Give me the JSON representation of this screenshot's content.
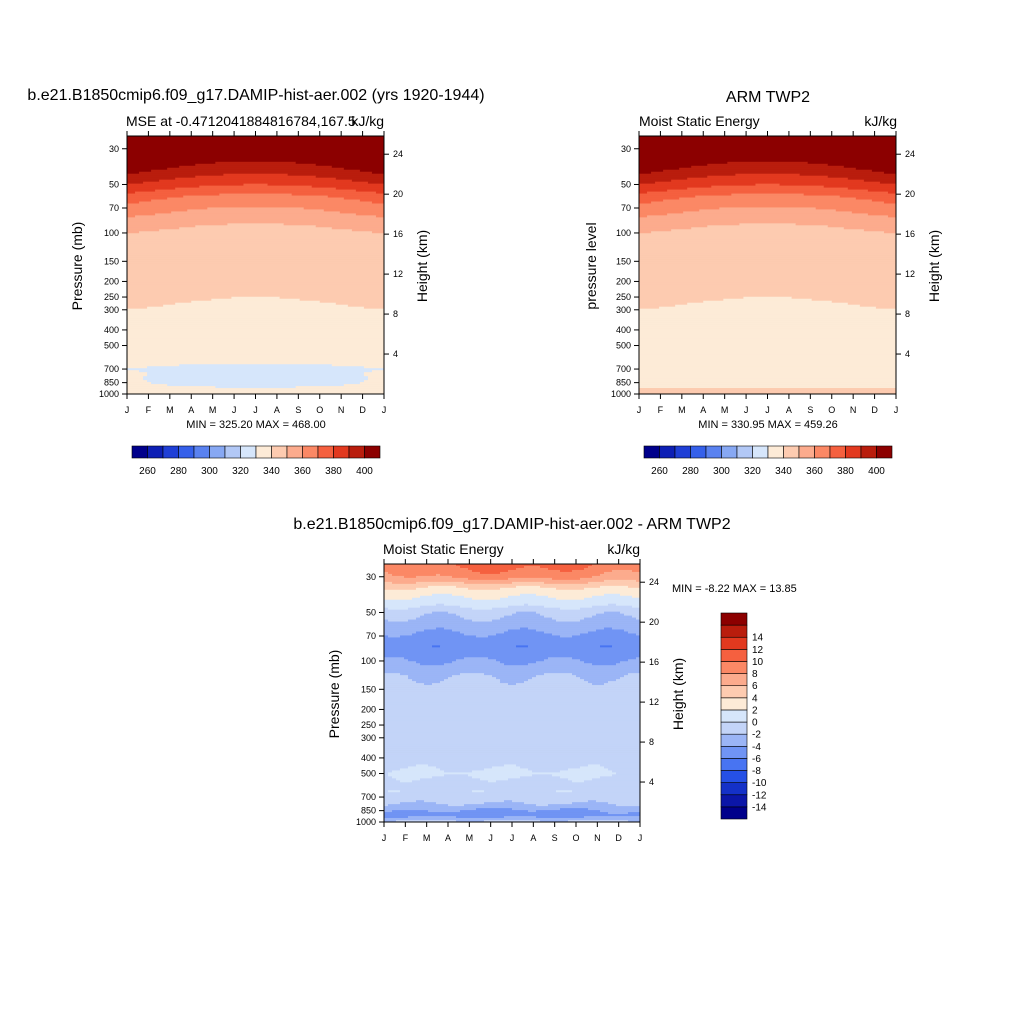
{
  "figure": {
    "panels": [
      {
        "title": "b.e21.B1850cmip6.f09_g17.DAMIP-hist-aer.002 (yrs 1920-1944)",
        "left_label": "MSE at -0.4712041884816784,167.5",
        "right_label": "kJ/kg",
        "ylabel": "Pressure (mb)",
        "ylabel_right": "Height (km)",
        "stats": "MIN = 325.20 MAX = 468.00"
      },
      {
        "title": "ARM TWP2",
        "left_label": "Moist Static Energy",
        "right_label": "kJ/kg",
        "ylabel": "pressure level",
        "ylabel_right": "Height (km)",
        "stats": "MIN = 330.95 MAX = 459.26"
      },
      {
        "title": "b.e21.B1850cmip6.f09_g17.DAMIP-hist-aer.002 - ARM TWP2",
        "left_label": "Moist Static Energy",
        "right_label": "kJ/kg",
        "ylabel": "Pressure (mb)",
        "ylabel_right": "Height (km)",
        "stats": "MIN =  -8.22 MAX =  13.85"
      }
    ]
  },
  "colors": {
    "abs_palette": [
      "#00008b",
      "#0d1fb5",
      "#1f3fd6",
      "#3560ea",
      "#5a82f0",
      "#87a8f3",
      "#b2c8f6",
      "#d6e6fb",
      "#fdebd7",
      "#fdcbb0",
      "#fcab8d",
      "#fb8865",
      "#f5603f",
      "#e2391f",
      "#b91d0d",
      "#8c0000"
    ],
    "diff_palette": [
      "#00008b",
      "#0b16a8",
      "#1431c8",
      "#2550e6",
      "#4874f2",
      "#7094f4",
      "#9bb5f6",
      "#c3d4f8",
      "#d6e6fb",
      "#fdebd7",
      "#fdcbb0",
      "#fcab8d",
      "#fb8865",
      "#f5603f",
      "#e2391f",
      "#b91d0d",
      "#8c0000"
    ]
  },
  "chart_data": [
    {
      "type": "heatmap",
      "title": "b.e21.B1850cmip6.f09_g17.DAMIP-hist-aer.002 (yrs 1920-1944)",
      "variable": "MSE at -0.4712041884816784,167.5",
      "units": "kJ/kg",
      "xlabel": "",
      "ylabel": "Pressure (mb)",
      "ylabel_right": "Height (km)",
      "x": [
        "J",
        "F",
        "M",
        "A",
        "M",
        "J",
        "J",
        "A",
        "S",
        "O",
        "N",
        "D",
        "J"
      ],
      "y_ticks": [
        30,
        50,
        70,
        100,
        150,
        200,
        250,
        300,
        400,
        500,
        700,
        850,
        1000
      ],
      "y_right_ticks": [
        4,
        8,
        12,
        16,
        20,
        24
      ],
      "pressure_axis": "log, reversed",
      "levels": [
        260,
        270,
        280,
        290,
        300,
        310,
        320,
        330,
        340,
        350,
        360,
        370,
        380,
        390,
        400
      ],
      "colorbar_labels": [
        260,
        280,
        300,
        320,
        340,
        360,
        380,
        400
      ],
      "min": 325.2,
      "max": 468.0,
      "fields": {
        "p_levels": [
          1000,
          950,
          900,
          850,
          800,
          750,
          700,
          650,
          600,
          550,
          500,
          450,
          400,
          350,
          300,
          250,
          200,
          150,
          125,
          100,
          90,
          80,
          70,
          60,
          50,
          40,
          30,
          20
        ],
        "profile": [
          336,
          334,
          333,
          332,
          331,
          331,
          330,
          331,
          331,
          332,
          333,
          334,
          336,
          338,
          340,
          342,
          343,
          345,
          346,
          350,
          354,
          360,
          367,
          375,
          390,
          405,
          420,
          450
        ],
        "seasonal_amp": [
          0,
          0,
          -4,
          -8,
          -6,
          -4,
          -2,
          -1,
          -0.5,
          0,
          0,
          0,
          -0.5,
          -1,
          -1.5,
          -2,
          -1.5,
          -1,
          -2,
          -3,
          -5,
          -7,
          -8,
          -9,
          -10,
          -11,
          -12,
          -12
        ]
      }
    },
    {
      "type": "heatmap",
      "title": "ARM TWP2",
      "variable": "Moist Static Energy",
      "units": "kJ/kg",
      "xlabel": "",
      "ylabel": "pressure level",
      "ylabel_right": "Height (km)",
      "x": [
        "J",
        "F",
        "M",
        "A",
        "M",
        "J",
        "J",
        "A",
        "S",
        "O",
        "N",
        "D",
        "J"
      ],
      "y_ticks": [
        30,
        50,
        70,
        100,
        150,
        200,
        250,
        300,
        400,
        500,
        700,
        850,
        1000
      ],
      "y_right_ticks": [
        4,
        8,
        12,
        16,
        20,
        24
      ],
      "pressure_axis": "log, reversed",
      "levels": [
        260,
        270,
        280,
        290,
        300,
        310,
        320,
        330,
        340,
        350,
        360,
        370,
        380,
        390,
        400
      ],
      "colorbar_labels": [
        260,
        280,
        300,
        320,
        340,
        360,
        380,
        400
      ],
      "min": 330.95,
      "max": 459.26,
      "fields": {
        "p_levels": [
          1000,
          950,
          900,
          850,
          800,
          750,
          700,
          650,
          600,
          550,
          500,
          450,
          400,
          350,
          300,
          250,
          200,
          150,
          125,
          100,
          90,
          80,
          70,
          60,
          50,
          40,
          30,
          20
        ],
        "profile": [
          345,
          342,
          338,
          336,
          335,
          334,
          333,
          333,
          334,
          335,
          336,
          337,
          338,
          339,
          340,
          342,
          343,
          345,
          346,
          350,
          354,
          360,
          367,
          375,
          390,
          405,
          420,
          450
        ],
        "seasonal_amp": [
          0,
          0,
          0,
          0,
          0,
          0,
          0,
          0,
          0,
          0,
          0,
          0,
          -0.5,
          -1,
          -1.5,
          -2,
          -1.5,
          -1,
          -2,
          -3,
          -5,
          -7,
          -8,
          -9,
          -10,
          -11,
          -12,
          -12
        ]
      }
    },
    {
      "type": "heatmap",
      "title": "b.e21.B1850cmip6.f09_g17.DAMIP-hist-aer.002 - ARM TWP2",
      "variable": "Moist Static Energy",
      "units": "kJ/kg",
      "xlabel": "",
      "ylabel": "Pressure (mb)",
      "ylabel_right": "Height (km)",
      "x": [
        "J",
        "F",
        "M",
        "A",
        "M",
        "J",
        "J",
        "A",
        "S",
        "O",
        "N",
        "D",
        "J"
      ],
      "y_ticks": [
        30,
        50,
        70,
        100,
        150,
        200,
        250,
        300,
        400,
        500,
        700,
        850,
        1000
      ],
      "y_right_ticks": [
        4,
        8,
        12,
        16,
        20,
        24
      ],
      "pressure_axis": "log, reversed",
      "levels": [
        -14,
        -12,
        -10,
        -8,
        -6,
        -4,
        -2,
        0,
        2,
        4,
        6,
        8,
        10,
        12,
        14
      ],
      "colorbar_labels": [
        -14,
        -12,
        -10,
        -8,
        -6,
        -4,
        -2,
        0,
        2,
        4,
        6,
        8,
        10,
        12,
        14
      ],
      "min": -8.22,
      "max": 13.85,
      "fields": {
        "p_levels": [
          1000,
          950,
          900,
          850,
          800,
          750,
          700,
          650,
          600,
          550,
          500,
          450,
          400,
          350,
          300,
          250,
          200,
          150,
          125,
          100,
          90,
          80,
          70,
          60,
          50,
          45,
          40,
          35,
          30,
          25
        ],
        "profile": [
          -1,
          -3,
          -4.5,
          -3.5,
          -2.5,
          -1.5,
          -1,
          -0.5,
          -0.8,
          -0.5,
          0.3,
          -0.5,
          -1,
          -1,
          -1,
          -1,
          -1,
          -1,
          -2,
          -4,
          -5,
          -5.5,
          -4.5,
          -3,
          -1.5,
          0.5,
          2,
          4,
          7,
          9
        ],
        "seasonal_amp": [
          0,
          -0.5,
          -1,
          -1,
          -0.5,
          0,
          0,
          0,
          0,
          0,
          0.5,
          0,
          0,
          0,
          0,
          0,
          0,
          0,
          0,
          0,
          0,
          0,
          0,
          0,
          0,
          0,
          0,
          0,
          2,
          2
        ]
      }
    }
  ]
}
